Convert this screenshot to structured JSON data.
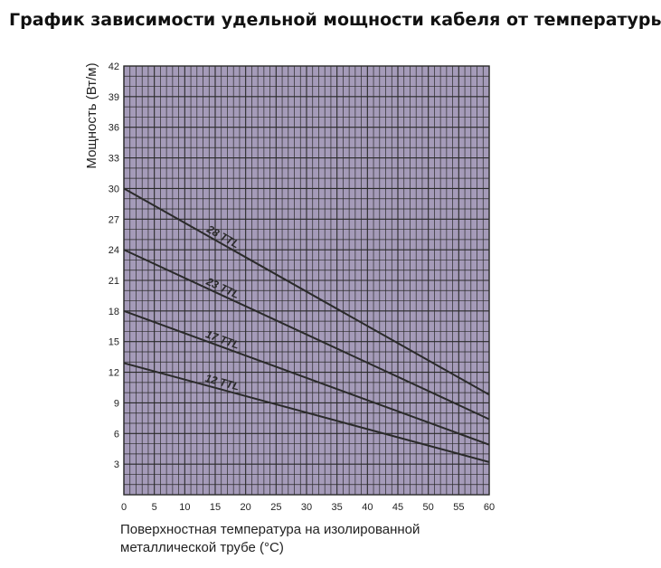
{
  "title": "График зависимости удельной мощности кабеля от температуры",
  "xlabel_line1": "Поверхностная температура на изолированной",
  "xlabel_line2": "металлической трубе (°С)",
  "colors": {
    "plot_background": "#a59bb9",
    "grid": "#2a2a2a",
    "series_line": "#2a2a2a",
    "text": "#222222"
  },
  "chart_data": {
    "type": "line",
    "title": "График зависимости удельной мощности кабеля от температуры",
    "xlabel": "Поверхностная температура на изолированной металлической трубе (°С)",
    "ylabel": "Мощность (Вт/м)",
    "xlim": [
      0,
      60
    ],
    "ylim": [
      0,
      42
    ],
    "x_ticks": [
      0,
      5,
      10,
      15,
      20,
      25,
      30,
      35,
      40,
      45,
      50,
      55,
      60
    ],
    "y_ticks": [
      3,
      6,
      9,
      12,
      15,
      18,
      21,
      24,
      27,
      30,
      33,
      36,
      39,
      42
    ],
    "grid": true,
    "legend": "none",
    "series": [
      {
        "name": "28 TTL",
        "x": [
          0,
          60
        ],
        "y": [
          30,
          9.8
        ]
      },
      {
        "name": "23 TTL",
        "x": [
          0,
          60
        ],
        "y": [
          24,
          7.4
        ]
      },
      {
        "name": "17 TTL",
        "x": [
          0,
          60
        ],
        "y": [
          18,
          4.9
        ]
      },
      {
        "name": "12 TTL",
        "x": [
          0,
          60
        ],
        "y": [
          12.9,
          3.2
        ]
      }
    ]
  }
}
